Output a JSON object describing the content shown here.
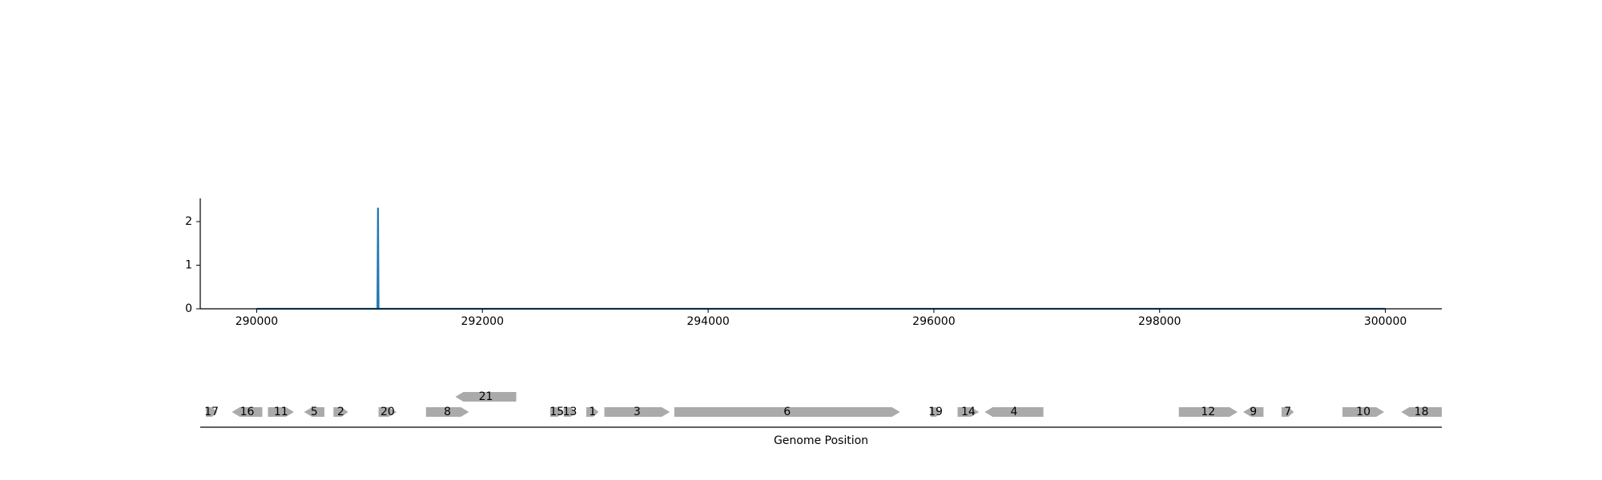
{
  "chart_data": [
    {
      "type": "line",
      "title": "",
      "xlabel": "",
      "ylabel": "",
      "xlim": [
        289500,
        300500
      ],
      "ylim": [
        0,
        2.55
      ],
      "x_ticks": [
        290000,
        292000,
        294000,
        296000,
        298000,
        300000
      ],
      "x_tick_labels": [
        "290000",
        "292000",
        "294000",
        "296000",
        "298000",
        "300000"
      ],
      "y_ticks": [
        0,
        1,
        2
      ],
      "y_tick_labels": [
        "0",
        "1",
        "2"
      ],
      "grid": false,
      "series": [
        {
          "color": "#1f77b4",
          "points": [
            [
              290000,
              0
            ],
            [
              291070,
              0
            ],
            [
              291075,
              2.32
            ],
            [
              291080,
              0
            ],
            [
              300000,
              0
            ]
          ]
        }
      ]
    },
    {
      "type": "gene-track",
      "title": "",
      "xlabel": "Genome Position",
      "xlim": [
        289500,
        300500
      ],
      "color": "#aaaaaa",
      "genes": [
        {
          "label": "17",
          "start": 289550,
          "end": 289650,
          "strand": "+",
          "lane": 0
        },
        {
          "label": "16",
          "start": 289780,
          "end": 290050,
          "strand": "-",
          "lane": 0
        },
        {
          "label": "11",
          "start": 290100,
          "end": 290330,
          "strand": "+",
          "lane": 0
        },
        {
          "label": "5",
          "start": 290420,
          "end": 290600,
          "strand": "-",
          "lane": 0
        },
        {
          "label": "2",
          "start": 290680,
          "end": 290810,
          "strand": "+",
          "lane": 0
        },
        {
          "label": "20",
          "start": 291080,
          "end": 291240,
          "strand": "+",
          "lane": 0
        },
        {
          "label": "8",
          "start": 291500,
          "end": 291880,
          "strand": "+",
          "lane": 0
        },
        {
          "label": "21",
          "start": 291760,
          "end": 292300,
          "strand": "-",
          "lane": 1
        },
        {
          "label": "15",
          "start": 292600,
          "end": 292720,
          "strand": "+",
          "lane": 0
        },
        {
          "label": "13",
          "start": 292720,
          "end": 292830,
          "strand": "+",
          "lane": 0
        },
        {
          "label": "1",
          "start": 292920,
          "end": 293030,
          "strand": "+",
          "lane": 0
        },
        {
          "label": "3",
          "start": 293080,
          "end": 293660,
          "strand": "+",
          "lane": 0
        },
        {
          "label": "6",
          "start": 293700,
          "end": 295700,
          "strand": "+",
          "lane": 0
        },
        {
          "label": "19",
          "start": 295970,
          "end": 296060,
          "strand": "+",
          "lane": 0
        },
        {
          "label": "14",
          "start": 296210,
          "end": 296400,
          "strand": "+",
          "lane": 0
        },
        {
          "label": "4",
          "start": 296450,
          "end": 296970,
          "strand": "-",
          "lane": 0
        },
        {
          "label": "12",
          "start": 298170,
          "end": 298690,
          "strand": "+",
          "lane": 0
        },
        {
          "label": "9",
          "start": 298740,
          "end": 298920,
          "strand": "-",
          "lane": 0
        },
        {
          "label": "7",
          "start": 299080,
          "end": 299190,
          "strand": "+",
          "lane": 0
        },
        {
          "label": "10",
          "start": 299620,
          "end": 299990,
          "strand": "+",
          "lane": 0
        },
        {
          "label": "18",
          "start": 300140,
          "end": 300500,
          "strand": "-",
          "lane": 0
        }
      ]
    }
  ]
}
